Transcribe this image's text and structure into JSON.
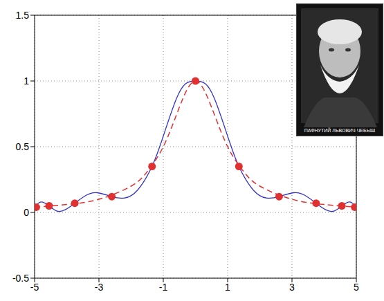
{
  "chart_data": {
    "type": "line",
    "annotation": "ПАФНУТИЙ ЛЬВОВИЧ ЧЕБЫШ",
    "xlim": [
      -5,
      5
    ],
    "xticks": [
      -5,
      -3,
      -1,
      1,
      3,
      5
    ],
    "ylim": [
      -0.5,
      1.5
    ],
    "yticks": [
      -0.5,
      0,
      0.5,
      1,
      1.5
    ],
    "grid": true,
    "series": [
      {
        "type": "line",
        "color": "#3333cc",
        "line_style": "solid",
        "x": [
          -5,
          -4.8,
          -4.55,
          -4.3,
          -4.05,
          -3.75,
          -3.4,
          -3.05,
          -2.6,
          -2.2,
          -1.8,
          -1.35,
          -1,
          -0.6,
          -0.3,
          0,
          0.3,
          0.6,
          1,
          1.35,
          1.8,
          2.2,
          2.6,
          3.05,
          3.4,
          3.75,
          4.05,
          4.3,
          4.55,
          4.8,
          5
        ],
        "values": [
          0.04,
          0.08,
          0.05,
          0.01,
          0.02,
          0.07,
          0.13,
          0.15,
          0.12,
          0.11,
          0.17,
          0.35,
          0.58,
          0.86,
          0.98,
          1.0,
          0.98,
          0.86,
          0.58,
          0.35,
          0.17,
          0.11,
          0.12,
          0.15,
          0.13,
          0.07,
          0.02,
          0.01,
          0.05,
          0.08,
          0.04
        ]
      },
      {
        "type": "line",
        "color": "#e03030",
        "line_style": "dashed",
        "x": [
          -5,
          -4,
          -3,
          -2,
          -1.5,
          -1,
          -0.5,
          0,
          0.5,
          1,
          1.5,
          2,
          3,
          4,
          5
        ],
        "values": [
          0.04,
          0.06,
          0.1,
          0.2,
          0.31,
          0.5,
          0.8,
          1.0,
          0.8,
          0.5,
          0.31,
          0.2,
          0.1,
          0.06,
          0.04
        ]
      },
      {
        "type": "scatter",
        "color": "#e03030",
        "marker": "o",
        "x": [
          -4.95,
          -4.55,
          -3.75,
          -2.6,
          -1.35,
          0,
          1.35,
          2.6,
          3.75,
          4.55,
          4.95
        ],
        "values": [
          0.04,
          0.05,
          0.07,
          0.12,
          0.35,
          1.0,
          0.35,
          0.12,
          0.07,
          0.05,
          0.04
        ]
      }
    ]
  }
}
